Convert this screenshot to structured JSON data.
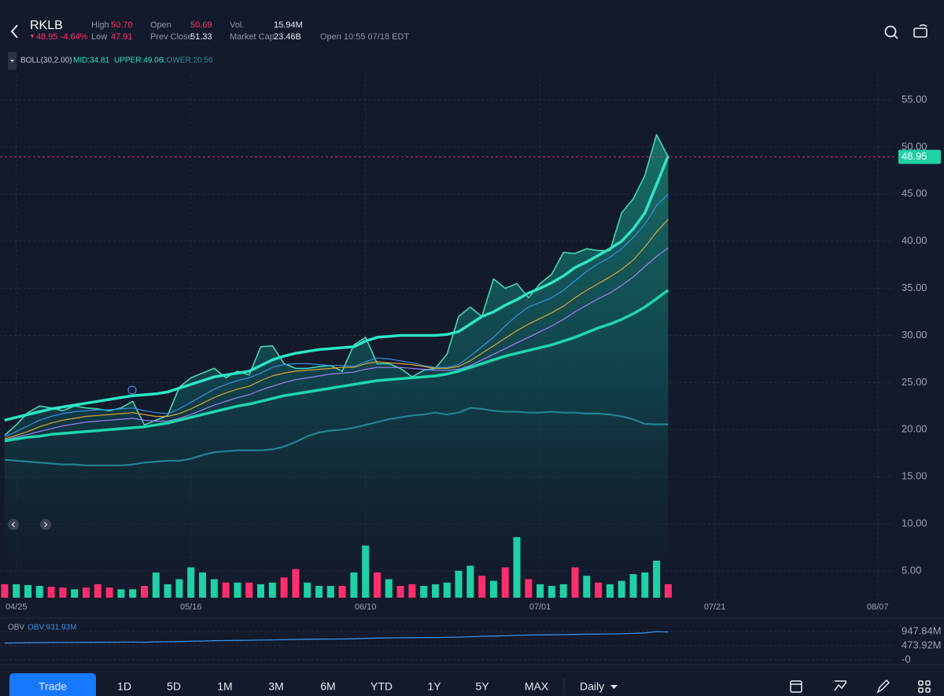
{
  "header": {
    "symbol": "RKLB",
    "change": "48.95 -4.64%",
    "stats": [
      {
        "label": "High",
        "value": "50.70"
      },
      {
        "label": "Low",
        "value": "47.91"
      },
      {
        "label": "Open",
        "value": "50.69"
      },
      {
        "label": "Prev Close",
        "value": "51.33"
      },
      {
        "label": "Vol.",
        "value": "15.94M"
      },
      {
        "label": "Market Cap",
        "value": "23.46B"
      }
    ],
    "status": "Open 10:55 07/18 EDT"
  },
  "indicators": {
    "boll": {
      "name": "BOLL(30,2.00)",
      "mid": "MID:34.81",
      "upper": "UPPER:49.06",
      "lower": "LOWER:20.56"
    },
    "obv": {
      "name": "OBV",
      "value": "OBV:931.93M"
    }
  },
  "chart_data": {
    "type": "line",
    "xlim": [
      -0.4,
      76.3
    ],
    "xticks": [
      {
        "value": 1,
        "label": "04/25"
      },
      {
        "value": 16,
        "label": "05/16"
      },
      {
        "value": 31,
        "label": "06/10"
      },
      {
        "value": 46,
        "label": "07/01"
      },
      {
        "value": 61,
        "label": "07/21"
      },
      {
        "value": 75,
        "label": "08/07"
      }
    ],
    "ylim": [
      2.16,
      57.67
    ],
    "yticks": [
      {
        "value": 55,
        "label": "55.00"
      },
      {
        "value": 50,
        "label": "50.00"
      },
      {
        "value": 45,
        "label": "45.00"
      },
      {
        "value": 40,
        "label": "40.00"
      },
      {
        "value": 35,
        "label": "35.00"
      },
      {
        "value": 30,
        "label": "30.00"
      },
      {
        "value": 25,
        "label": "25.00"
      },
      {
        "value": 20,
        "label": "20.00"
      },
      {
        "value": 15,
        "label": "15.00"
      },
      {
        "value": 10,
        "label": "10.00"
      },
      {
        "value": 5,
        "label": "5.00"
      }
    ],
    "grid": true,
    "last_price": 48.95,
    "last_price_color": "#1fd1a5",
    "series": [
      {
        "style": "area",
        "color": "#45d6b5",
        "values": [
          19.4,
          20.5,
          21.8,
          22.5,
          22.3,
          22.0,
          22.5,
          22.3,
          22.2,
          22.0,
          22.3,
          23.0,
          20.5,
          21.0,
          21.5,
          24.5,
          25.5,
          26.0,
          26.5,
          25.5,
          26.2,
          25.8,
          28.8,
          28.9,
          27.0,
          26.5,
          26.5,
          26.7,
          26.8,
          26.2,
          29.0,
          29.8,
          27.0,
          27.0,
          26.5,
          25.6,
          26.3,
          26.5,
          28.0,
          32.0,
          33.0,
          32.0,
          36.0,
          35.0,
          35.5,
          34.0,
          35.5,
          36.5,
          38.8,
          38.7,
          39.2,
          39.0,
          39.0,
          43.0,
          44.5,
          47.0,
          51.3,
          48.95
        ]
      },
      {
        "style": "thin",
        "color": "#3a8fe0",
        "values": [
          19.2,
          19.8,
          20.4,
          21.0,
          21.4,
          21.7,
          21.9,
          22.0,
          22.1,
          22.1,
          22.2,
          22.3,
          22.0,
          21.8,
          21.7,
          22.2,
          22.9,
          23.6,
          24.3,
          24.8,
          25.2,
          25.5,
          26.0,
          26.6,
          26.9,
          27.0,
          27.0,
          26.9,
          26.8,
          26.8,
          26.7,
          27.2,
          27.6,
          27.5,
          27.3,
          27.1,
          26.8,
          26.6,
          26.6,
          26.9,
          27.8,
          28.8,
          29.8,
          31.0,
          32.1,
          33.0,
          33.5,
          34.0,
          34.8,
          35.8,
          36.8,
          37.6,
          38.3,
          39.2,
          40.4,
          41.8,
          43.8,
          45.0
        ]
      },
      {
        "style": "thin",
        "color": "#d9a43a",
        "values": [
          19.0,
          19.4,
          19.8,
          20.3,
          20.7,
          21.0,
          21.2,
          21.4,
          21.5,
          21.6,
          21.7,
          21.8,
          21.6,
          21.4,
          21.4,
          21.7,
          22.2,
          22.8,
          23.4,
          23.9,
          24.3,
          24.6,
          25.2,
          25.7,
          26.0,
          26.2,
          26.3,
          26.4,
          26.5,
          26.6,
          26.6,
          27.0,
          27.2,
          27.1,
          27.0,
          26.9,
          26.7,
          26.5,
          26.5,
          26.7,
          27.3,
          28.1,
          28.9,
          29.7,
          30.5,
          31.2,
          31.8,
          32.4,
          33.1,
          34.0,
          34.8,
          35.5,
          36.2,
          37.0,
          38.0,
          39.4,
          41.0,
          42.3
        ]
      },
      {
        "style": "thin",
        "color": "#9b82f2",
        "values": [
          18.9,
          19.2,
          19.5,
          19.8,
          20.1,
          20.4,
          20.6,
          20.8,
          20.9,
          21.0,
          21.1,
          21.2,
          21.0,
          20.9,
          20.9,
          21.2,
          21.6,
          22.1,
          22.6,
          23.0,
          23.4,
          23.7,
          24.2,
          24.6,
          25.0,
          25.3,
          25.5,
          25.7,
          25.9,
          26.0,
          26.1,
          26.4,
          26.6,
          26.6,
          26.6,
          26.5,
          26.4,
          26.3,
          26.3,
          26.4,
          26.8,
          27.4,
          28.0,
          28.6,
          29.2,
          29.8,
          30.4,
          31.0,
          31.7,
          32.5,
          33.2,
          33.9,
          34.5,
          35.3,
          36.2,
          37.3,
          38.4,
          39.3
        ]
      },
      {
        "style": "thick",
        "color": "#2ee6c6",
        "values": [
          21.0,
          21.3,
          21.6,
          21.9,
          22.2,
          22.4,
          22.6,
          22.8,
          23.0,
          23.2,
          23.4,
          23.6,
          23.7,
          23.8,
          24.0,
          24.4,
          24.8,
          25.2,
          25.6,
          25.8,
          26.0,
          26.2,
          26.8,
          27.4,
          27.8,
          28.1,
          28.3,
          28.5,
          28.6,
          28.7,
          28.8,
          29.4,
          29.8,
          29.9,
          30.0,
          30.0,
          30.0,
          30.0,
          30.1,
          30.4,
          31.2,
          32.0,
          32.5,
          33.2,
          33.8,
          34.5,
          35.0,
          35.6,
          36.3,
          37.2,
          37.8,
          38.5,
          39.2,
          40.0,
          41.3,
          43.0,
          46.0,
          49.06
        ]
      },
      {
        "style": "thick",
        "color": "#1fd6ae",
        "values": [
          18.8,
          19.0,
          19.2,
          19.3,
          19.5,
          19.6,
          19.7,
          19.8,
          19.9,
          20.0,
          20.1,
          20.2,
          20.3,
          20.5,
          20.7,
          21.0,
          21.3,
          21.6,
          21.9,
          22.2,
          22.5,
          22.7,
          23.0,
          23.3,
          23.6,
          23.8,
          24.0,
          24.2,
          24.4,
          24.6,
          24.8,
          25.0,
          25.2,
          25.3,
          25.4,
          25.5,
          25.6,
          25.7,
          25.9,
          26.2,
          26.6,
          27.0,
          27.4,
          27.8,
          28.1,
          28.4,
          28.7,
          29.0,
          29.4,
          29.8,
          30.3,
          30.8,
          31.2,
          31.7,
          32.3,
          33.0,
          33.9,
          34.81
        ]
      },
      {
        "style": "medium",
        "color": "#23848f",
        "values": [
          16.8,
          16.7,
          16.6,
          16.5,
          16.4,
          16.3,
          16.3,
          16.2,
          16.2,
          16.2,
          16.2,
          16.3,
          16.5,
          16.6,
          16.7,
          16.7,
          16.9,
          17.3,
          17.6,
          17.7,
          17.8,
          17.8,
          17.8,
          17.9,
          18.2,
          18.7,
          19.3,
          19.7,
          19.9,
          20.0,
          20.2,
          20.5,
          20.8,
          21.1,
          21.3,
          21.5,
          21.6,
          21.8,
          21.6,
          21.8,
          22.3,
          22.2,
          22.0,
          21.9,
          21.9,
          21.8,
          21.8,
          21.9,
          21.8,
          21.8,
          21.7,
          21.7,
          21.6,
          21.4,
          21.1,
          20.6,
          20.56,
          20.56
        ]
      }
    ],
    "volume": {
      "vlim": [
        0,
        100
      ],
      "up_color": "#1fd1a5",
      "down_color": "#ff2f6d",
      "values": [
        16,
        16,
        15,
        14,
        13,
        12,
        10,
        12,
        16,
        12,
        10,
        10,
        14,
        30,
        16,
        22,
        36,
        30,
        22,
        18,
        18,
        18,
        16,
        18,
        24,
        34,
        18,
        14,
        14,
        14,
        30,
        62,
        30,
        22,
        14,
        16,
        14,
        16,
        18,
        32,
        38,
        26,
        20,
        36,
        72,
        22,
        16,
        14,
        16,
        36,
        26,
        18,
        16,
        20,
        28,
        30,
        44,
        15.94
      ]
    },
    "obv": {
      "color": "#3a8fe0",
      "ylim": [
        -158,
        1290
      ],
      "yticks": [
        {
          "value": 947.84,
          "label": "947.84M"
        },
        {
          "value": 473.92,
          "label": "473.92M"
        },
        {
          "value": 0,
          "label": "-0"
        }
      ],
      "values": [
        560,
        565,
        570,
        575,
        578,
        580,
        582,
        585,
        588,
        590,
        592,
        594,
        590,
        600,
        605,
        612,
        620,
        630,
        640,
        645,
        650,
        655,
        660,
        668,
        675,
        685,
        690,
        692,
        695,
        698,
        705,
        720,
        730,
        735,
        738,
        742,
        745,
        748,
        752,
        760,
        775,
        790,
        795,
        805,
        820,
        830,
        835,
        838,
        842,
        850,
        858,
        862,
        866,
        872,
        885,
        900,
        945,
        931.93
      ]
    }
  },
  "toolbar": {
    "trade": "Trade",
    "ranges": [
      "1D",
      "5D",
      "1M",
      "3M",
      "6M",
      "YTD",
      "1Y",
      "5Y",
      "MAX"
    ],
    "interval": "Daily"
  }
}
